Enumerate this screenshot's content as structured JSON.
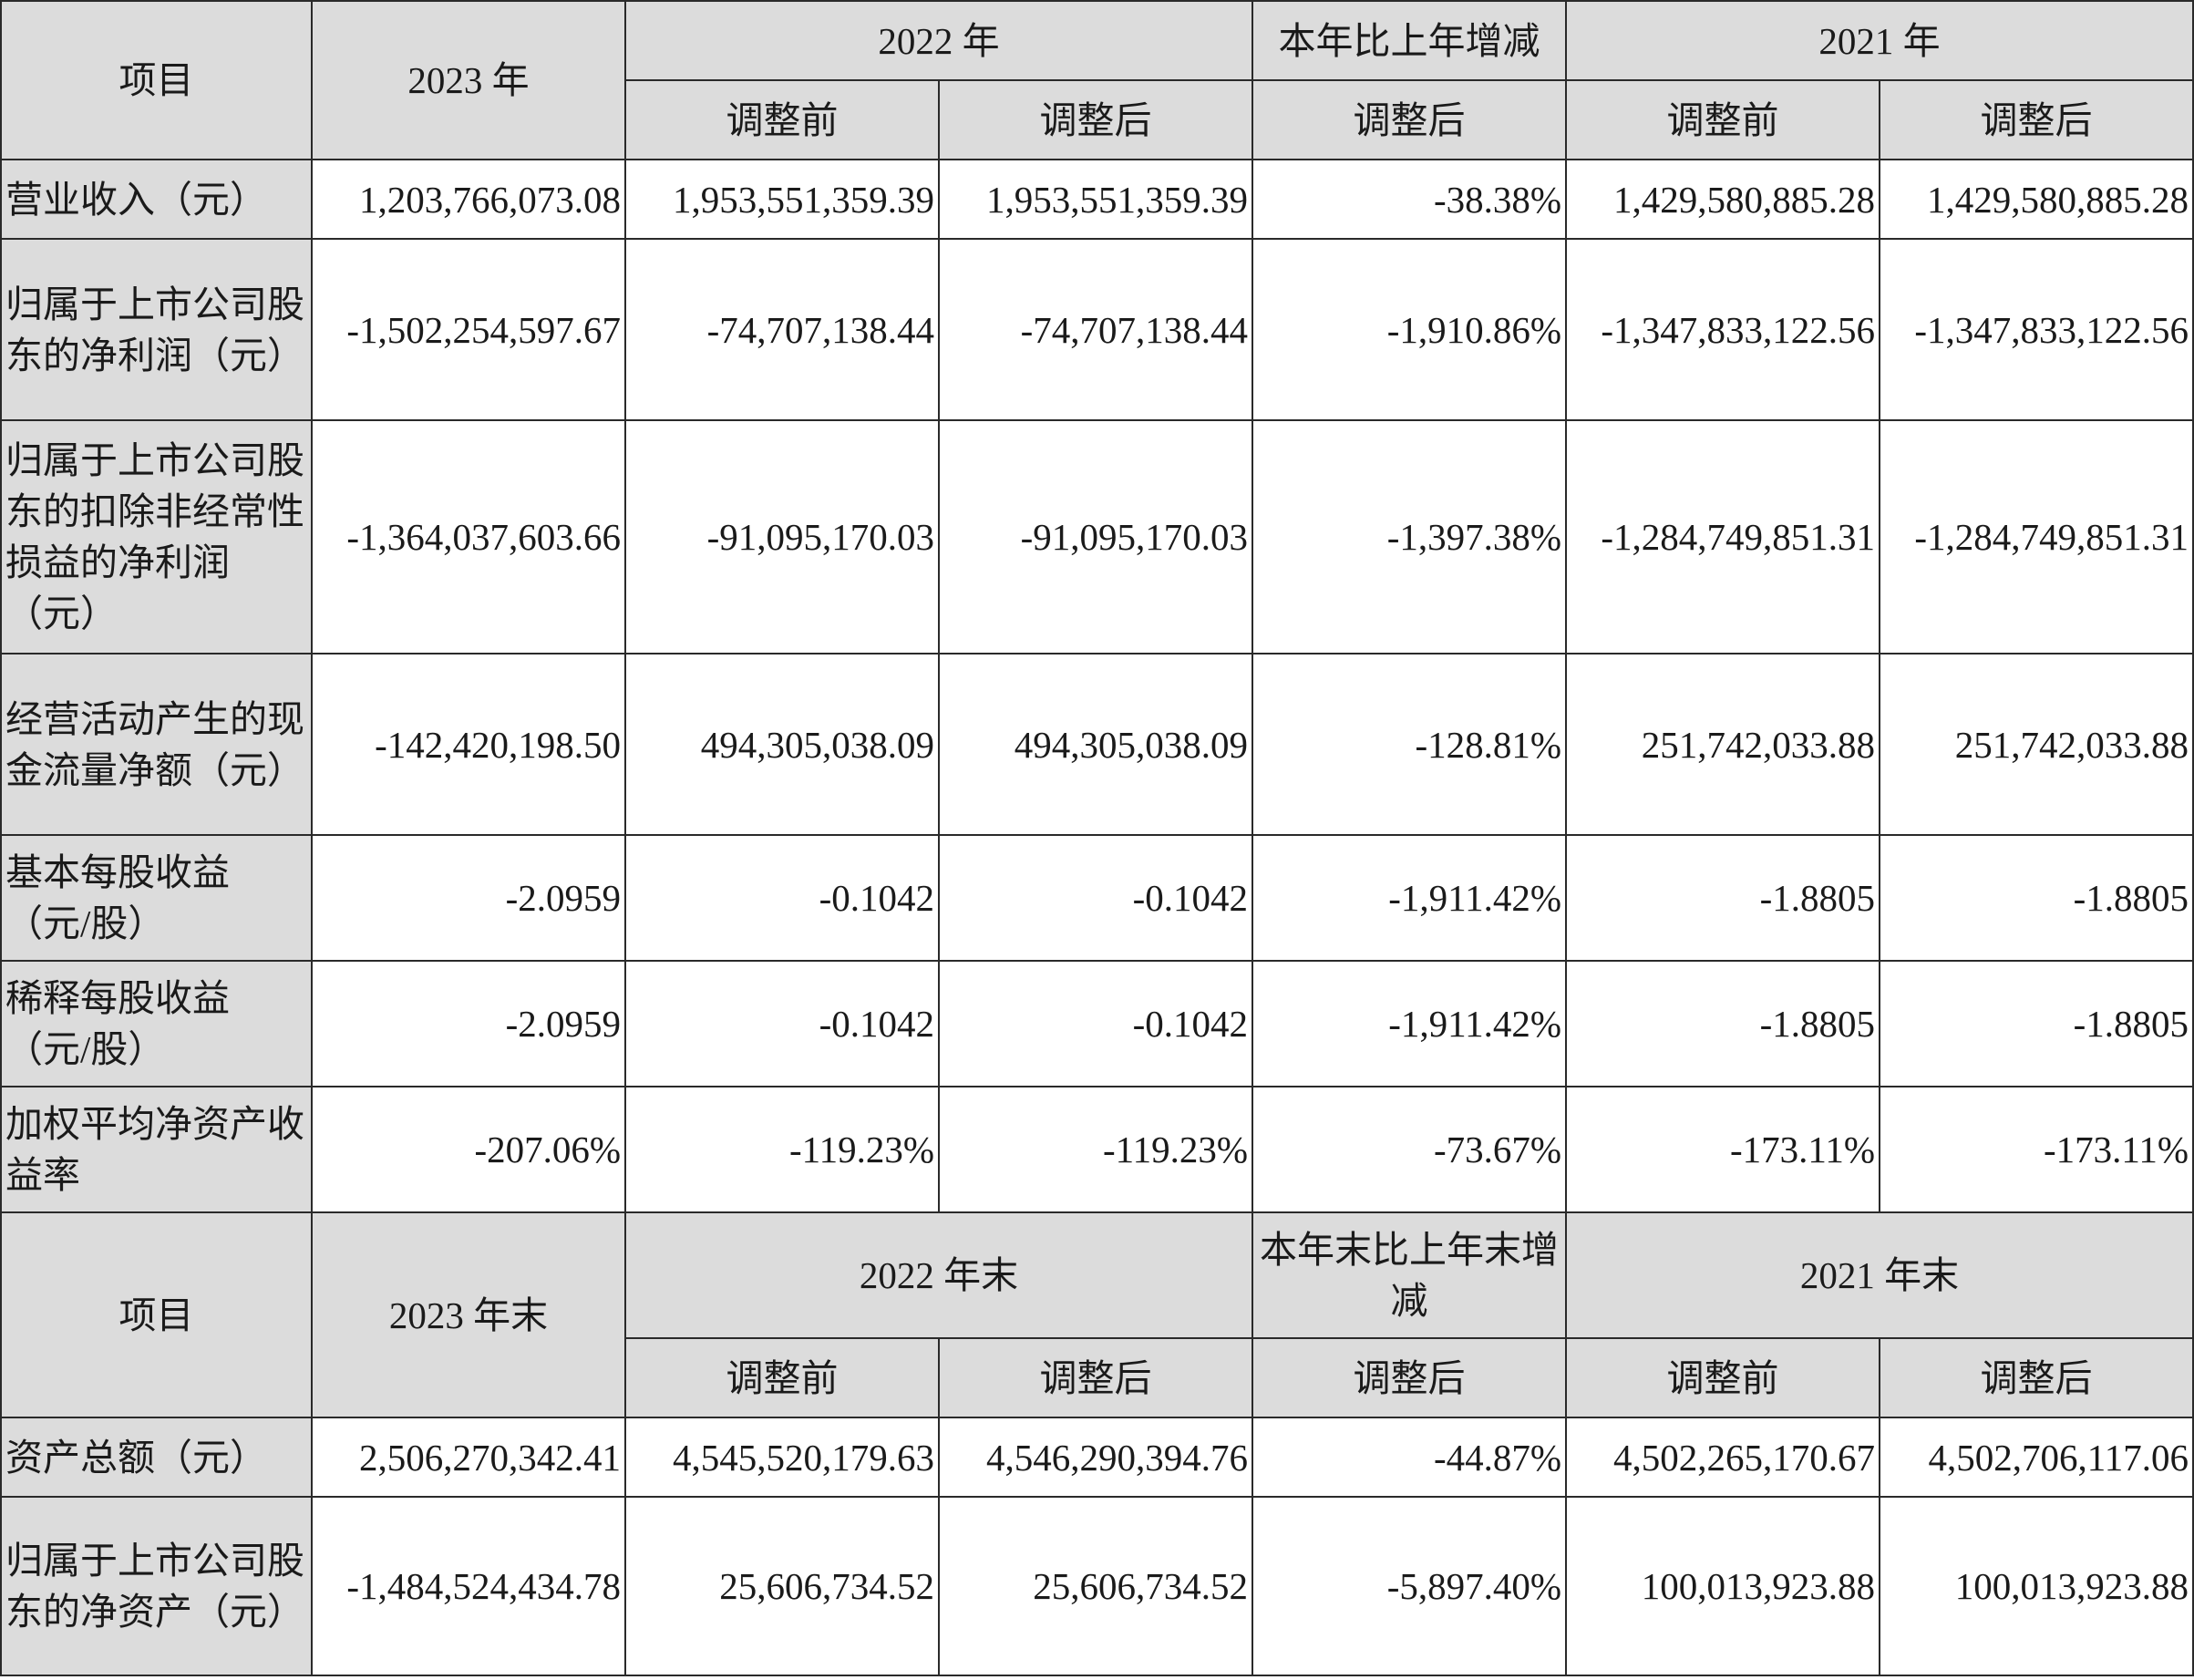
{
  "section1": {
    "header": {
      "item": "项目",
      "y2023": "2023 年",
      "y2022": "2022 年",
      "change": "本年比上年增减",
      "y2021": "2021 年",
      "before": "调整前",
      "after": "调整后"
    },
    "rows": [
      {
        "label": "营业收入（元）",
        "v2023": "1,203,766,073.08",
        "v2022b": "1,953,551,359.39",
        "v2022a": "1,953,551,359.39",
        "chg": "-38.38%",
        "v2021b": "1,429,580,885.28",
        "v2021a": "1,429,580,885.28"
      },
      {
        "label": "归属于上市公司股东的净利润（元）",
        "v2023": "-1,502,254,597.67",
        "v2022b": "-74,707,138.44",
        "v2022a": "-74,707,138.44",
        "chg": "-1,910.86%",
        "v2021b": "-1,347,833,122.56",
        "v2021a": "-1,347,833,122.56"
      },
      {
        "label": "归属于上市公司股东的扣除非经常性损益的净利润（元）",
        "v2023": "-1,364,037,603.66",
        "v2022b": "-91,095,170.03",
        "v2022a": "-91,095,170.03",
        "chg": "-1,397.38%",
        "v2021b": "-1,284,749,851.31",
        "v2021a": "-1,284,749,851.31"
      },
      {
        "label": "经营活动产生的现金流量净额（元）",
        "v2023": "-142,420,198.50",
        "v2022b": "494,305,038.09",
        "v2022a": "494,305,038.09",
        "chg": "-128.81%",
        "v2021b": "251,742,033.88",
        "v2021a": "251,742,033.88"
      },
      {
        "label": "基本每股收益（元/股）",
        "v2023": "-2.0959",
        "v2022b": "-0.1042",
        "v2022a": "-0.1042",
        "chg": "-1,911.42%",
        "v2021b": "-1.8805",
        "v2021a": "-1.8805"
      },
      {
        "label": "稀释每股收益（元/股）",
        "v2023": "-2.0959",
        "v2022b": "-0.1042",
        "v2022a": "-0.1042",
        "chg": "-1,911.42%",
        "v2021b": "-1.8805",
        "v2021a": "-1.8805"
      },
      {
        "label": "加权平均净资产收益率",
        "v2023": "-207.06%",
        "v2022b": "-119.23%",
        "v2022a": "-119.23%",
        "chg": "-73.67%",
        "v2021b": "-173.11%",
        "v2021a": "-173.11%"
      }
    ]
  },
  "section2": {
    "header": {
      "item": "项目",
      "y2023": "2023 年末",
      "y2022": "2022 年末",
      "change": "本年末比上年末增减",
      "y2021": "2021 年末",
      "before": "调整前",
      "after": "调整后"
    },
    "rows": [
      {
        "label": "资产总额（元）",
        "v2023": "2,506,270,342.41",
        "v2022b": "4,545,520,179.63",
        "v2022a": "4,546,290,394.76",
        "chg": "-44.87%",
        "v2021b": "4,502,265,170.67",
        "v2021a": "4,502,706,117.06"
      },
      {
        "label": "归属于上市公司股东的净资产（元）",
        "v2023": "-1,484,524,434.78",
        "v2022b": "25,606,734.52",
        "v2022a": "25,606,734.52",
        "chg": "-5,897.40%",
        "v2021b": "100,013,923.88",
        "v2021a": "100,013,923.88"
      }
    ]
  }
}
